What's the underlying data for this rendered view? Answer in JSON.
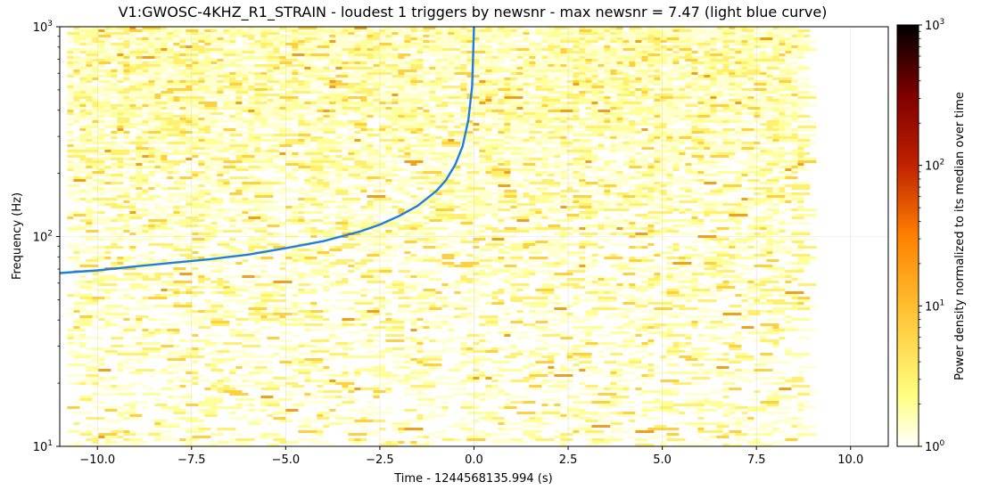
{
  "chart_data": {
    "type": "heatmap",
    "title": "V1:GWOSC-4KHZ_R1_STRAIN - loudest 1 triggers by newsnr - max newsnr = 7.47 (light blue curve)",
    "xlabel": "Time - 1244568135.994 (s)",
    "ylabel": "Frequency (Hz)",
    "xlim": [
      -11,
      11
    ],
    "ylim": [
      10,
      1000
    ],
    "yscale": "log",
    "x_ticks": [
      -10.0,
      -7.5,
      -5.0,
      -2.5,
      0.0,
      2.5,
      5.0,
      7.5,
      10.0
    ],
    "x_tick_labels": [
      "−10.0",
      "−7.5",
      "−5.0",
      "−2.5",
      "0.0",
      "2.5",
      "5.0",
      "7.5",
      "10.0"
    ],
    "y_ticks": [
      10,
      100,
      1000
    ],
    "y_tick_labels": [
      "10",
      "10",
      "10"
    ],
    "y_tick_exponents": [
      "1",
      "2",
      "3"
    ],
    "grid": true,
    "spectrogram": {
      "x_range": [
        -10.8,
        8.7
      ],
      "y_range": [
        10,
        1000
      ],
      "colormap": "afmhot_r",
      "color_scale": "log"
    },
    "colorbar": {
      "label": "Power density normalized to its median over time",
      "range": [
        1,
        1000
      ],
      "scale": "log",
      "ticks": [
        1,
        10,
        100,
        1000
      ],
      "tick_labels": [
        "10",
        "10",
        "10",
        "10"
      ],
      "tick_exponents": [
        "0",
        "1",
        "2",
        "3"
      ]
    },
    "series": [
      {
        "type": "line",
        "color": "#1f7fe0",
        "x": [
          -11.0,
          -10.0,
          -9.0,
          -8.0,
          -7.0,
          -6.0,
          -5.0,
          -4.0,
          -3.0,
          -2.5,
          -2.0,
          -1.5,
          -1.0,
          -0.75,
          -0.5,
          -0.3,
          -0.15,
          -0.05,
          0.0
        ],
        "y": [
          67,
          69,
          72,
          75,
          78,
          82,
          88,
          95,
          106,
          114,
          125,
          140,
          165,
          185,
          220,
          270,
          360,
          520,
          1000
        ]
      }
    ]
  }
}
